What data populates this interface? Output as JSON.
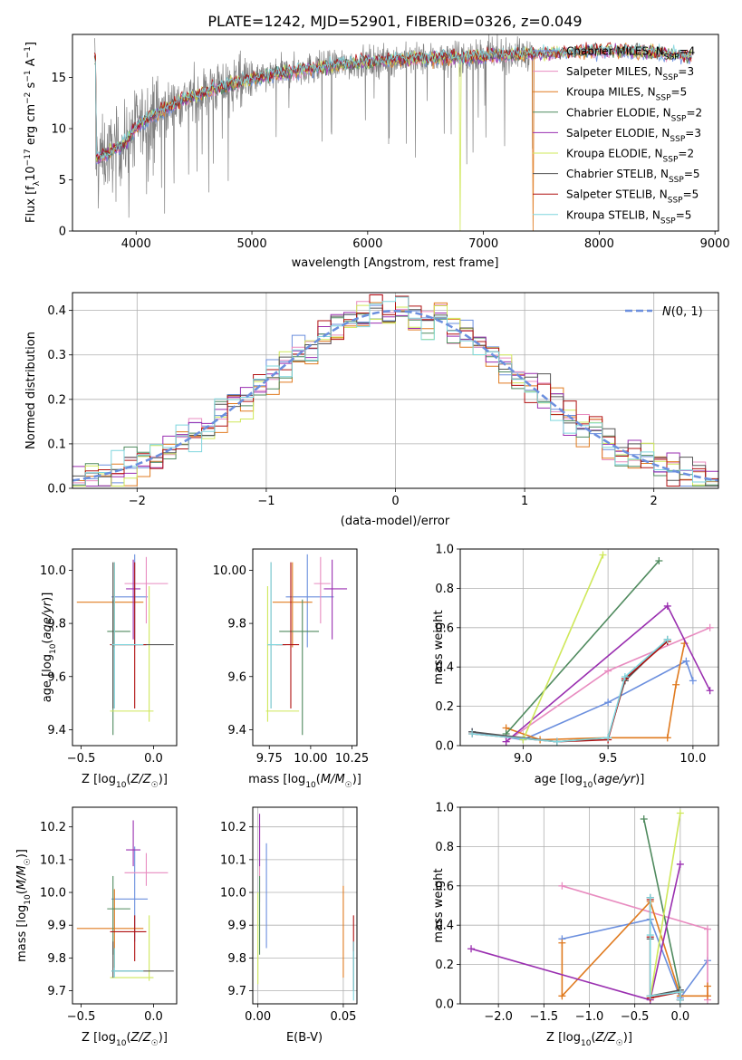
{
  "figure_title": "PLATE=1242, MJD=52901, FIBERID=0326, z=0.049",
  "colors": {
    "Chabrier MILES": "#6b8fde",
    "Salpeter MILES": "#e88cc0",
    "Kroupa MILES": "#e07b20",
    "Chabrier ELODIE": "#4f8a5e",
    "Salpeter ELODIE": "#9a2fb0",
    "Kroupa ELODIE": "#cfe85a",
    "Chabrier STELIB": "#555555",
    "Salpeter STELIB": "#b01010",
    "Kroupa STELIB": "#7fd6de",
    "data": "#808080",
    "normal": "#6b8fde"
  },
  "chart_data": [
    {
      "id": "spectrum",
      "type": "line",
      "xlabel": "wavelength [Angstrom, rest frame]",
      "ylabel": "Flux [f_λ 10^-17 erg cm^-2 s^-1 A^-1]",
      "xlim": [
        3450,
        9030
      ],
      "ylim": [
        0,
        19.2
      ],
      "xticks": [
        4000,
        5000,
        6000,
        7000,
        8000,
        9000
      ],
      "yticks": [
        0,
        5,
        10,
        15
      ],
      "legend_position": "right",
      "legend": [
        {
          "name": "Chabrier MILES",
          "nssp": "4"
        },
        {
          "name": "Salpeter MILES",
          "nssp": "3"
        },
        {
          "name": "Kroupa MILES",
          "nssp": "5"
        },
        {
          "name": "Chabrier ELODIE",
          "nssp": "2"
        },
        {
          "name": "Salpeter ELODIE",
          "nssp": "3"
        },
        {
          "name": "Kroupa ELODIE",
          "nssp": "2"
        },
        {
          "name": "Chabrier STELIB",
          "nssp": "5"
        },
        {
          "name": "Salpeter STELIB",
          "nssp": "5"
        },
        {
          "name": "Kroupa STELIB",
          "nssp": "5"
        }
      ],
      "continuum": {
        "x": [
          3650,
          3800,
          3900,
          4000,
          4100,
          4200,
          4300,
          4400,
          4500,
          4600,
          4700,
          4800,
          4900,
          5000,
          5200,
          5400,
          5600,
          5800,
          6000,
          6200,
          6400,
          6600,
          6800,
          7000,
          7200,
          7400,
          7600,
          7800,
          8000,
          8200,
          8400,
          8600,
          8800
        ],
        "y": [
          7.0,
          7.8,
          8.5,
          10.2,
          11.0,
          11.6,
          12.2,
          12.8,
          13.2,
          13.6,
          14.0,
          14.3,
          14.6,
          14.8,
          15.3,
          15.7,
          16.0,
          16.3,
          16.5,
          16.7,
          16.8,
          16.9,
          17.0,
          17.1,
          17.2,
          17.3,
          17.4,
          17.5,
          17.6,
          17.6,
          17.5,
          17.3,
          17.0
        ]
      },
      "data_range": [
        3640,
        7430
      ],
      "model_range": [
        3640,
        8800
      ],
      "model_dropouts": [
        {
          "series": "Kroupa ELODIE",
          "x": 6800
        },
        {
          "series": "Kroupa MILES",
          "x": 7430
        }
      ]
    },
    {
      "id": "residuals",
      "type": "step",
      "xlabel": "(data-model)/error",
      "ylabel": "Normed distribution",
      "xlim": [
        -2.5,
        2.5
      ],
      "ylim": [
        0,
        0.44
      ],
      "xticks": [
        -2,
        -1,
        0,
        1,
        2
      ],
      "yticks": [
        0.0,
        0.1,
        0.2,
        0.3,
        0.4
      ],
      "bin_width": 0.1,
      "grid": true,
      "legend": "N(0,1)",
      "legend_position": "top-right",
      "series_names": [
        "Chabrier MILES",
        "Salpeter MILES",
        "Kroupa MILES",
        "Chabrier ELODIE",
        "Salpeter ELODIE",
        "Kroupa ELODIE",
        "Chabrier STELIB",
        "Salpeter STELIB",
        "Kroupa STELIB"
      ]
    },
    {
      "id": "age_vs_Z",
      "type": "errorbar",
      "xlabel": "Z [log10(Z/Z☉)]",
      "ylabel": "age [log10(age/yr)]",
      "xlim": [
        -0.56,
        0.16
      ],
      "ylim": [
        9.34,
        10.08
      ],
      "xticks": [
        -0.5,
        0.0
      ],
      "yticks": [
        9.4,
        9.6,
        9.8,
        10.0
      ],
      "points": [
        {
          "series": "Chabrier MILES",
          "x": -0.13,
          "xerr": [
            0.16,
            0.09
          ],
          "y": 9.9,
          "yerr": [
            0.19,
            0.16
          ]
        },
        {
          "series": "Salpeter MILES",
          "x": -0.05,
          "xerr": [
            0.15,
            0.15
          ],
          "y": 9.95,
          "yerr": [
            0.15,
            0.1
          ]
        },
        {
          "series": "Kroupa MILES",
          "x": -0.27,
          "xerr": [
            0.26,
            0.2
          ],
          "y": 9.88,
          "yerr": [
            0.17,
            0.15
          ]
        },
        {
          "series": "Chabrier ELODIE",
          "x": -0.28,
          "xerr": [
            0.04,
            0.12
          ],
          "y": 9.77,
          "yerr": [
            0.39,
            0.12
          ]
        },
        {
          "series": "Salpeter ELODIE",
          "x": -0.14,
          "xerr": [
            0.05,
            0.05
          ],
          "y": 9.93,
          "yerr": [
            0.19,
            0.11
          ]
        },
        {
          "series": "Kroupa ELODIE",
          "x": -0.03,
          "xerr": [
            0.27,
            0.03
          ],
          "y": 9.47,
          "yerr": [
            0.04,
            0.47
          ]
        },
        {
          "series": "Chabrier STELIB",
          "x": -0.28,
          "xerr": [
            0.01,
            0.42
          ],
          "y": 9.72,
          "yerr": [
            0.24,
            0.31
          ]
        },
        {
          "series": "Salpeter STELIB",
          "x": -0.13,
          "xerr": [
            0.17,
            0.08
          ],
          "y": 9.72,
          "yerr": [
            0.24,
            0.31
          ]
        },
        {
          "series": "Kroupa STELIB",
          "x": -0.27,
          "xerr": [
            0.02,
            0.2
          ],
          "y": 9.72,
          "yerr": [
            0.24,
            0.31
          ]
        }
      ]
    },
    {
      "id": "age_vs_mass",
      "type": "errorbar",
      "xlabel": "mass [log10(M/M☉)]",
      "ylabel": "",
      "xlim": [
        9.65,
        10.28
      ],
      "ylim": [
        9.34,
        10.08
      ],
      "xticks": [
        9.75,
        10.0,
        10.25
      ],
      "yticks": [
        9.4,
        9.6,
        9.8,
        10.0
      ],
      "points": [
        {
          "series": "Chabrier MILES",
          "x": 9.98,
          "xerr": [
            0.13,
            0.16
          ],
          "y": 9.9,
          "yerr": [
            0.19,
            0.16
          ]
        },
        {
          "series": "Salpeter MILES",
          "x": 10.06,
          "xerr": [
            0.04,
            0.06
          ],
          "y": 9.95,
          "yerr": [
            0.15,
            0.1
          ]
        },
        {
          "series": "Kroupa MILES",
          "x": 9.89,
          "xerr": [
            0.12,
            0.12
          ],
          "y": 9.88,
          "yerr": [
            0.17,
            0.15
          ]
        },
        {
          "series": "Chabrier ELODIE",
          "x": 9.95,
          "xerr": [
            0.14,
            0.1
          ],
          "y": 9.77,
          "yerr": [
            0.39,
            0.12
          ]
        },
        {
          "series": "Salpeter ELODIE",
          "x": 10.13,
          "xerr": [
            0.05,
            0.09
          ],
          "y": 9.93,
          "yerr": [
            0.19,
            0.11
          ]
        },
        {
          "series": "Kroupa ELODIE",
          "x": 9.74,
          "xerr": [
            0.01,
            0.19
          ],
          "y": 9.47,
          "yerr": [
            0.04,
            0.47
          ]
        },
        {
          "series": "Chabrier STELIB",
          "x": 9.76,
          "xerr": [
            0.02,
            0.09
          ],
          "y": 9.72,
          "yerr": [
            0.24,
            0.31
          ]
        },
        {
          "series": "Salpeter STELIB",
          "x": 9.88,
          "xerr": [
            0.09,
            0.05
          ],
          "y": 9.72,
          "yerr": [
            0.24,
            0.31
          ]
        },
        {
          "series": "Kroupa STELIB",
          "x": 9.76,
          "xerr": [
            0.02,
            0.07
          ],
          "y": 9.72,
          "yerr": [
            0.24,
            0.31
          ]
        }
      ]
    },
    {
      "id": "weight_vs_age",
      "type": "line",
      "xlabel": "age [log10(age/yr)]",
      "ylabel": "mass weight",
      "xlim": [
        8.63,
        10.15
      ],
      "ylim": [
        0,
        1.0
      ],
      "xticks": [
        9.0,
        9.5,
        10.0
      ],
      "yticks": [
        0.0,
        0.2,
        0.4,
        0.6,
        0.8,
        1.0
      ],
      "grid": true,
      "series": [
        {
          "name": "Chabrier MILES",
          "x": [
            8.7,
            9.0,
            9.5,
            9.96,
            10.0
          ],
          "y": [
            0.07,
            0.03,
            0.22,
            0.43,
            0.33
          ]
        },
        {
          "name": "Salpeter MILES",
          "x": [
            8.9,
            9.5,
            10.1
          ],
          "y": [
            0.02,
            0.38,
            0.6
          ]
        },
        {
          "name": "Kroupa MILES",
          "x": [
            8.9,
            9.1,
            9.5,
            9.85,
            9.9,
            9.95
          ],
          "y": [
            0.09,
            0.03,
            0.04,
            0.04,
            0.31,
            0.52
          ]
        },
        {
          "name": "Chabrier ELODIE",
          "x": [
            8.9,
            9.8
          ],
          "y": [
            0.06,
            0.94
          ]
        },
        {
          "name": "Salpeter ELODIE",
          "x": [
            8.9,
            9.85,
            10.1
          ],
          "y": [
            0.02,
            0.71,
            0.28
          ]
        },
        {
          "name": "Kroupa ELODIE",
          "x": [
            9.0,
            9.47
          ],
          "y": [
            0.03,
            0.97
          ]
        },
        {
          "name": "Chabrier STELIB",
          "x": [
            8.7,
            9.2,
            9.5,
            9.6,
            9.85
          ],
          "y": [
            0.07,
            0.02,
            0.04,
            0.33,
            0.54
          ]
        },
        {
          "name": "Salpeter STELIB",
          "x": [
            8.7,
            9.2,
            9.5,
            9.6,
            9.85
          ],
          "y": [
            0.06,
            0.02,
            0.03,
            0.34,
            0.53
          ]
        },
        {
          "name": "Kroupa STELIB",
          "x": [
            8.7,
            9.2,
            9.5,
            9.6,
            9.85
          ],
          "y": [
            0.06,
            0.02,
            0.04,
            0.35,
            0.54
          ]
        }
      ]
    },
    {
      "id": "mass_vs_Z",
      "type": "errorbar",
      "xlabel": "Z [log10(Z/Z☉)]",
      "ylabel": "mass [log10(M/M☉)]",
      "xlim": [
        -0.56,
        0.16
      ],
      "ylim": [
        9.66,
        10.26
      ],
      "xticks": [
        -0.5,
        0.0
      ],
      "yticks": [
        9.7,
        9.8,
        9.9,
        10.0,
        10.1,
        10.2
      ],
      "points": [
        {
          "series": "Chabrier MILES",
          "x": -0.13,
          "xerr": [
            0.16,
            0.09
          ],
          "y": 9.98,
          "yerr": [
            0.13,
            0.16
          ]
        },
        {
          "series": "Salpeter MILES",
          "x": -0.05,
          "xerr": [
            0.15,
            0.15
          ],
          "y": 10.06,
          "yerr": [
            0.04,
            0.06
          ]
        },
        {
          "series": "Kroupa MILES",
          "x": -0.27,
          "xerr": [
            0.26,
            0.2
          ],
          "y": 9.89,
          "yerr": [
            0.12,
            0.12
          ]
        },
        {
          "series": "Chabrier ELODIE",
          "x": -0.28,
          "xerr": [
            0.04,
            0.12
          ],
          "y": 9.95,
          "yerr": [
            0.14,
            0.1
          ]
        },
        {
          "series": "Salpeter ELODIE",
          "x": -0.14,
          "xerr": [
            0.05,
            0.05
          ],
          "y": 10.13,
          "yerr": [
            0.05,
            0.09
          ]
        },
        {
          "series": "Kroupa ELODIE",
          "x": -0.03,
          "xerr": [
            0.27,
            0.03
          ],
          "y": 9.74,
          "yerr": [
            0.01,
            0.19
          ]
        },
        {
          "series": "Chabrier STELIB",
          "x": -0.28,
          "xerr": [
            0.01,
            0.42
          ],
          "y": 9.76,
          "yerr": [
            0.02,
            0.09
          ]
        },
        {
          "series": "Salpeter STELIB",
          "x": -0.13,
          "xerr": [
            0.17,
            0.08
          ],
          "y": 9.88,
          "yerr": [
            0.09,
            0.05
          ]
        },
        {
          "series": "Kroupa STELIB",
          "x": -0.27,
          "xerr": [
            0.02,
            0.2
          ],
          "y": 9.76,
          "yerr": [
            0.02,
            0.07
          ]
        }
      ]
    },
    {
      "id": "mass_vs_ebv",
      "type": "errorbar",
      "xlabel": "E(B-V)",
      "ylabel": "",
      "xlim": [
        -0.003,
        0.058
      ],
      "ylim": [
        9.66,
        10.26
      ],
      "xticks": [
        0.0,
        0.05
      ],
      "yticks": [
        9.7,
        9.8,
        9.9,
        10.0,
        10.1,
        10.2
      ],
      "grid": true,
      "points": [
        {
          "series": "Chabrier MILES",
          "x": 0.005,
          "y": 9.98,
          "yerr": [
            0.15,
            0.17
          ]
        },
        {
          "series": "Salpeter MILES",
          "x": 0.001,
          "y": 10.06,
          "yerr": [
            0.09,
            0.15
          ]
        },
        {
          "series": "Kroupa MILES",
          "x": 0.05,
          "y": 9.89,
          "yerr": [
            0.15,
            0.13
          ]
        },
        {
          "series": "Chabrier ELODIE",
          "x": 0.001,
          "y": 9.95,
          "yerr": [
            0.14,
            0.1
          ]
        },
        {
          "series": "Salpeter ELODIE",
          "x": 0.001,
          "y": 10.13,
          "yerr": [
            0.05,
            0.11
          ]
        },
        {
          "series": "Kroupa ELODIE",
          "x": 0.0,
          "y": 9.74,
          "yerr": [
            0.02,
            0.26
          ]
        },
        {
          "series": "Chabrier STELIB",
          "x": 0.056,
          "y": 9.76,
          "yerr": [
            0.06,
            0.09
          ]
        },
        {
          "series": "Salpeter STELIB",
          "x": 0.056,
          "y": 9.88,
          "yerr": [
            0.06,
            0.05
          ]
        },
        {
          "series": "Kroupa STELIB",
          "x": 0.056,
          "y": 9.76,
          "yerr": [
            0.09,
            0.09
          ]
        }
      ]
    },
    {
      "id": "weight_vs_Z",
      "type": "line",
      "xlabel": "Z [log10(Z/Z☉)]",
      "ylabel": "mass weight",
      "xlim": [
        -2.42,
        0.42
      ],
      "ylim": [
        0,
        1.0
      ],
      "xticks": [
        -2.0,
        -1.5,
        -1.0,
        -0.5,
        0.0
      ],
      "yticks": [
        0.0,
        0.2,
        0.4,
        0.6,
        0.8,
        1.0
      ],
      "grid": true,
      "series": [
        {
          "name": "Chabrier MILES",
          "x": [
            -1.3,
            -0.33,
            0.0,
            0.3
          ],
          "y": [
            0.33,
            0.43,
            0.03,
            0.22
          ]
        },
        {
          "name": "Salpeter MILES",
          "x": [
            -1.3,
            0.3,
            0.3
          ],
          "y": [
            0.6,
            0.38,
            0.02
          ]
        },
        {
          "name": "Kroupa MILES",
          "x": [
            -1.3,
            -1.3,
            -0.33,
            0.0,
            0.3,
            0.3
          ],
          "y": [
            0.31,
            0.04,
            0.52,
            0.04,
            0.04,
            0.09
          ]
        },
        {
          "name": "Chabrier ELODIE",
          "x": [
            -0.4,
            0.0
          ],
          "y": [
            0.94,
            0.06
          ]
        },
        {
          "name": "Salpeter ELODIE",
          "x": [
            -2.3,
            -0.33,
            0.0
          ],
          "y": [
            0.28,
            0.02,
            0.71
          ]
        },
        {
          "name": "Kroupa ELODIE",
          "x": [
            -0.33,
            0.0
          ],
          "y": [
            0.03,
            0.97
          ]
        },
        {
          "name": "Chabrier STELIB",
          "x": [
            -0.33,
            -0.33,
            -0.33,
            0.0,
            0.0
          ],
          "y": [
            0.54,
            0.33,
            0.04,
            0.07,
            0.02
          ]
        },
        {
          "name": "Salpeter STELIB",
          "x": [
            -0.33,
            -0.33,
            -0.33,
            0.0,
            0.0
          ],
          "y": [
            0.53,
            0.34,
            0.03,
            0.06,
            0.02
          ]
        },
        {
          "name": "Kroupa STELIB",
          "x": [
            -0.33,
            -0.33,
            -0.33,
            0.0,
            0.0
          ],
          "y": [
            0.54,
            0.35,
            0.04,
            0.06,
            0.02
          ]
        }
      ]
    }
  ]
}
